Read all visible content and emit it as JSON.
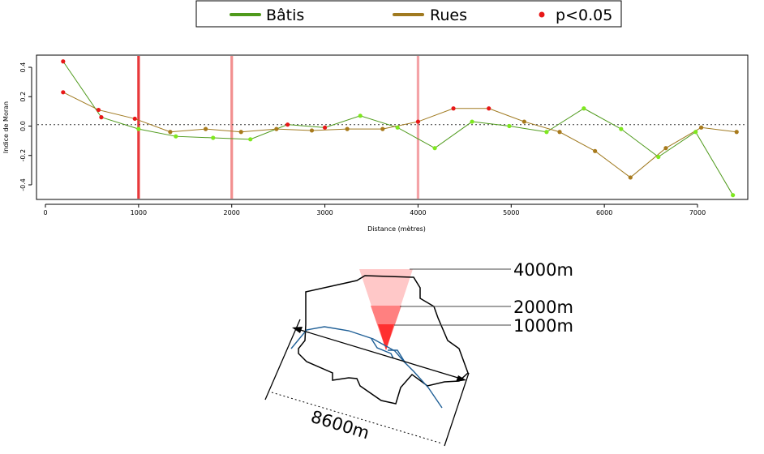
{
  "chart_data": {
    "type": "line",
    "xlabel": "Distance (mètres)",
    "ylabel": "Indice de Moran",
    "xlim": [
      0,
      7500
    ],
    "ylim": [
      -0.5,
      0.45
    ],
    "x_ticks": [
      0,
      1000,
      2000,
      3000,
      4000,
      5000,
      6000,
      7000
    ],
    "x_tick_labels": [
      "0",
      "1000",
      "2000",
      "3000",
      "4000",
      "5000",
      "6000",
      "7000"
    ],
    "y_ticks": [
      0.4,
      0.2,
      0.0,
      -0.2,
      -0.4
    ],
    "y_tick_labels": [
      "0.4",
      "0.2",
      "0.0",
      "-0.2",
      "-0.4"
    ],
    "reference_line": {
      "y": 0.01,
      "style": "dotted"
    },
    "vertical_markers": [
      {
        "x": 1000,
        "color": "#e8383a"
      },
      {
        "x": 2000,
        "color": "#f28f8f"
      },
      {
        "x": 4000,
        "color": "#f4a3a7"
      }
    ],
    "legend": {
      "position": "top-center",
      "items": [
        {
          "label": "Bâtis",
          "type": "line",
          "color": "#4f9a1c"
        },
        {
          "label": "Rues",
          "type": "line",
          "color": "#a07a20"
        },
        {
          "label": "p<0.05",
          "type": "point",
          "color": "#e81818"
        }
      ]
    },
    "colors": {
      "batis_line": "#4f9a1c",
      "batis_point": "#7ee81e",
      "rues_line": "#a07a20",
      "rues_point": "#a87a1c",
      "significant": "#e81818"
    },
    "series": [
      {
        "name": "Bâtis",
        "points": [
          {
            "x": 190,
            "y": 0.44,
            "sig": true
          },
          {
            "x": 600,
            "y": 0.06,
            "sig": true
          },
          {
            "x": 1000,
            "y": -0.02,
            "sig": false
          },
          {
            "x": 1400,
            "y": -0.07,
            "sig": false
          },
          {
            "x": 1800,
            "y": -0.08,
            "sig": false
          },
          {
            "x": 2200,
            "y": -0.09,
            "sig": false
          },
          {
            "x": 2600,
            "y": 0.01,
            "sig": true
          },
          {
            "x": 3000,
            "y": -0.01,
            "sig": true
          },
          {
            "x": 3380,
            "y": 0.07,
            "sig": false
          },
          {
            "x": 3780,
            "y": -0.01,
            "sig": false
          },
          {
            "x": 4180,
            "y": -0.15,
            "sig": false
          },
          {
            "x": 4580,
            "y": 0.03,
            "sig": false
          },
          {
            "x": 4980,
            "y": 0.0,
            "sig": false
          },
          {
            "x": 5380,
            "y": -0.04,
            "sig": false
          },
          {
            "x": 5780,
            "y": 0.12,
            "sig": false
          },
          {
            "x": 6180,
            "y": -0.02,
            "sig": false
          },
          {
            "x": 6580,
            "y": -0.21,
            "sig": false
          },
          {
            "x": 6980,
            "y": -0.04,
            "sig": false
          },
          {
            "x": 7380,
            "y": -0.47,
            "sig": false
          }
        ]
      },
      {
        "name": "Rues",
        "points": [
          {
            "x": 190,
            "y": 0.23,
            "sig": true
          },
          {
            "x": 570,
            "y": 0.11,
            "sig": true
          },
          {
            "x": 960,
            "y": 0.05,
            "sig": true
          },
          {
            "x": 1340,
            "y": -0.04,
            "sig": false
          },
          {
            "x": 1720,
            "y": -0.02,
            "sig": false
          },
          {
            "x": 2100,
            "y": -0.04,
            "sig": false
          },
          {
            "x": 2480,
            "y": -0.02,
            "sig": false
          },
          {
            "x": 2860,
            "y": -0.03,
            "sig": false
          },
          {
            "x": 3240,
            "y": -0.02,
            "sig": false
          },
          {
            "x": 3620,
            "y": -0.02,
            "sig": false
          },
          {
            "x": 4000,
            "y": 0.03,
            "sig": true
          },
          {
            "x": 4380,
            "y": 0.12,
            "sig": true
          },
          {
            "x": 4760,
            "y": 0.12,
            "sig": true
          },
          {
            "x": 5140,
            "y": 0.03,
            "sig": false
          },
          {
            "x": 5520,
            "y": -0.04,
            "sig": false
          },
          {
            "x": 5900,
            "y": -0.17,
            "sig": false
          },
          {
            "x": 6280,
            "y": -0.35,
            "sig": false
          },
          {
            "x": 6660,
            "y": -0.15,
            "sig": false
          },
          {
            "x": 7040,
            "y": -0.01,
            "sig": false
          },
          {
            "x": 7420,
            "y": -0.04,
            "sig": false
          }
        ]
      }
    ]
  },
  "diagram": {
    "cone_labels": [
      {
        "text": "4000m",
        "fill": "#ffc8c8"
      },
      {
        "text": "2000m",
        "fill": "#ff8080"
      },
      {
        "text": "1000m",
        "fill": "#ff3030"
      }
    ],
    "extent_label": "8600m",
    "colors": {
      "outline": "#000000",
      "rivers": "#1f5f96"
    }
  }
}
